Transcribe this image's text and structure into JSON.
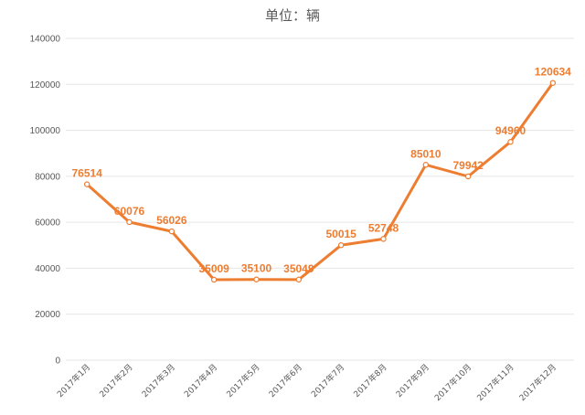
{
  "chart_data": {
    "type": "line",
    "title": "单位：辆",
    "xlabel": "",
    "ylabel": "",
    "categories": [
      "2017年1月",
      "2017年2月",
      "2017年3月",
      "2017年4月",
      "2017年5月",
      "2017年6月",
      "2017年7月",
      "2017年8月",
      "2017年9月",
      "2017年10月",
      "2017年11月",
      "2017年12月"
    ],
    "series": [
      {
        "values": [
          76514,
          60076,
          56026,
          35009,
          35100,
          35049,
          50015,
          52748,
          85010,
          79942,
          94960,
          120634
        ]
      }
    ],
    "ylim": [
      0,
      140000
    ],
    "yticks": [
      "0",
      "20000",
      "40000",
      "60000",
      "80000",
      "100000",
      "120000",
      "140000"
    ],
    "grid": true,
    "data_labels": true,
    "line_color": "#ED7D31",
    "marker_fill": "#FFFFFF"
  }
}
